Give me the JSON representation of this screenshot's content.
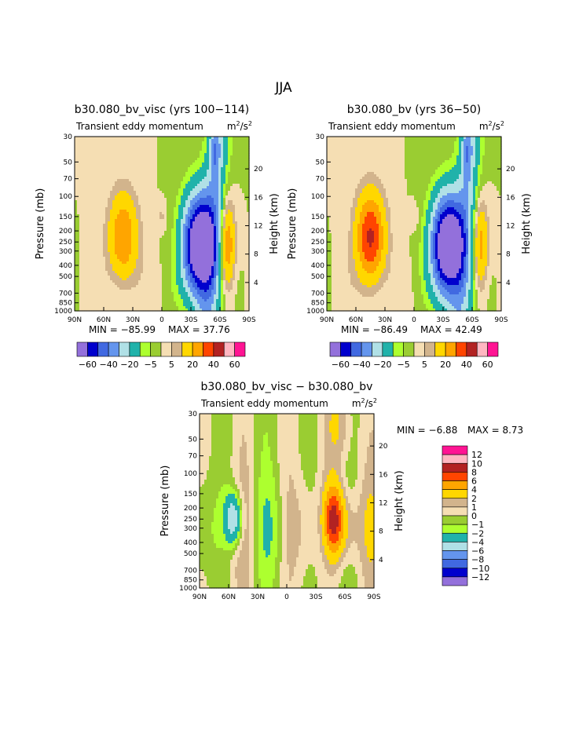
{
  "page": {
    "title": "JJA"
  },
  "units": {
    "main": "m",
    "sup": "2",
    "mid": "/s",
    "sup2": "2"
  },
  "chart_data": [
    {
      "type": "contour",
      "title": "b30.080_bv_visc (yrs 100−114)",
      "subtitle": "Transient eddy momentum",
      "ylabel": "Pressure (mb)",
      "y2label": "Height (km)",
      "x_ticks": [
        "90N",
        "60N",
        "30N",
        "0",
        "30S",
        "60S",
        "90S"
      ],
      "pressure_ticks": [
        "30",
        "50",
        "70",
        "100",
        "150",
        "200",
        "250",
        "300",
        "400",
        "500",
        "700",
        "850",
        "1000"
      ],
      "height_ticks": [
        "20",
        "16",
        "12",
        "8",
        "4"
      ],
      "min_text": "MIN = −85.99",
      "max_text": "MAX =   37.76",
      "min": -85.99,
      "max": 37.76,
      "features": [
        {
          "lat": 40,
          "p": 230,
          "value": 30
        },
        {
          "lat": -39,
          "p": 270,
          "value": -86
        },
        {
          "lat": -67,
          "p": 270,
          "value": 35
        },
        {
          "lat": 0,
          "p": 150,
          "value": 6
        },
        {
          "lat": -55,
          "p": 40,
          "value": -20
        }
      ]
    },
    {
      "type": "contour",
      "title": "b30.080_bv (yrs 36−50)",
      "subtitle": "Transient eddy momentum",
      "ylabel": "Pressure (mb)",
      "y2label": "Height (km)",
      "x_ticks": [
        "90N",
        "60N",
        "30N",
        "0",
        "30S",
        "60S",
        "90S"
      ],
      "pressure_ticks": [
        "30",
        "50",
        "70",
        "100",
        "150",
        "200",
        "250",
        "300",
        "400",
        "500",
        "700",
        "850",
        "1000"
      ],
      "height_ticks": [
        "20",
        "16",
        "12",
        "8",
        "4"
      ],
      "min_text": "MIN = −86.49",
      "max_text": "MAX =   42.49",
      "min": -86.49,
      "max": 42.49,
      "features": [
        {
          "lat": 45,
          "p": 230,
          "value": 42
        },
        {
          "lat": -35,
          "p": 270,
          "value": -86
        },
        {
          "lat": -68,
          "p": 270,
          "value": 28
        },
        {
          "lat": 0,
          "p": 150,
          "value": 5
        },
        {
          "lat": -55,
          "p": 40,
          "value": -20
        }
      ]
    },
    {
      "type": "contour",
      "title": "b30.080_bv_visc − b30.080_bv",
      "subtitle": "Transient eddy momentum",
      "ylabel": "Pressure (mb)",
      "y2label": "Height (km)",
      "x_ticks": [
        "90N",
        "60N",
        "30N",
        "0",
        "30S",
        "60S",
        "90S"
      ],
      "pressure_ticks": [
        "30",
        "50",
        "70",
        "100",
        "150",
        "200",
        "250",
        "300",
        "400",
        "500",
        "700",
        "850",
        "1000"
      ],
      "height_ticks": [
        "20",
        "16",
        "12",
        "8",
        "4"
      ],
      "min_text": "MIN =   −6.88",
      "max_text": "MAX =    8.73",
      "min": -6.88,
      "max": 8.73,
      "features": [
        {
          "lat": 55,
          "p": 250,
          "value": -6.9
        },
        {
          "lat": -48,
          "p": 250,
          "value": 8.7
        },
        {
          "lat": -60,
          "p": 300,
          "value": 3
        },
        {
          "lat": -55,
          "p": 40,
          "value": 2
        }
      ]
    }
  ],
  "colorbar_main": {
    "labels": [
      "−60",
      "−40",
      "−20",
      "−5",
      "5",
      "20",
      "40",
      "60"
    ],
    "colors": [
      "#9370DB",
      "#0000CD",
      "#4169E1",
      "#6495ED",
      "#B0E0E6",
      "#20B2AA",
      "#ADFF2F",
      "#9ACD32",
      "#F5DEB3",
      "#D2B48C",
      "#FFD700",
      "#FFA500",
      "#FF4500",
      "#B22222",
      "#FFB6C1",
      "#FF1493"
    ]
  },
  "colorbar_diff": {
    "labels": [
      "12",
      "10",
      "8",
      "6",
      "4",
      "2",
      "1",
      "0",
      "−1",
      "−2",
      "−4",
      "−6",
      "−8",
      "−10",
      "−12"
    ],
    "colors": [
      "#FF1493",
      "#FFB6C1",
      "#B22222",
      "#FF4500",
      "#FFA500",
      "#FFD700",
      "#D2B48C",
      "#F5DEB3",
      "#9ACD32",
      "#ADFF2F",
      "#20B2AA",
      "#B0E0E6",
      "#6495ED",
      "#4169E1",
      "#0000CD",
      "#9370DB"
    ]
  }
}
